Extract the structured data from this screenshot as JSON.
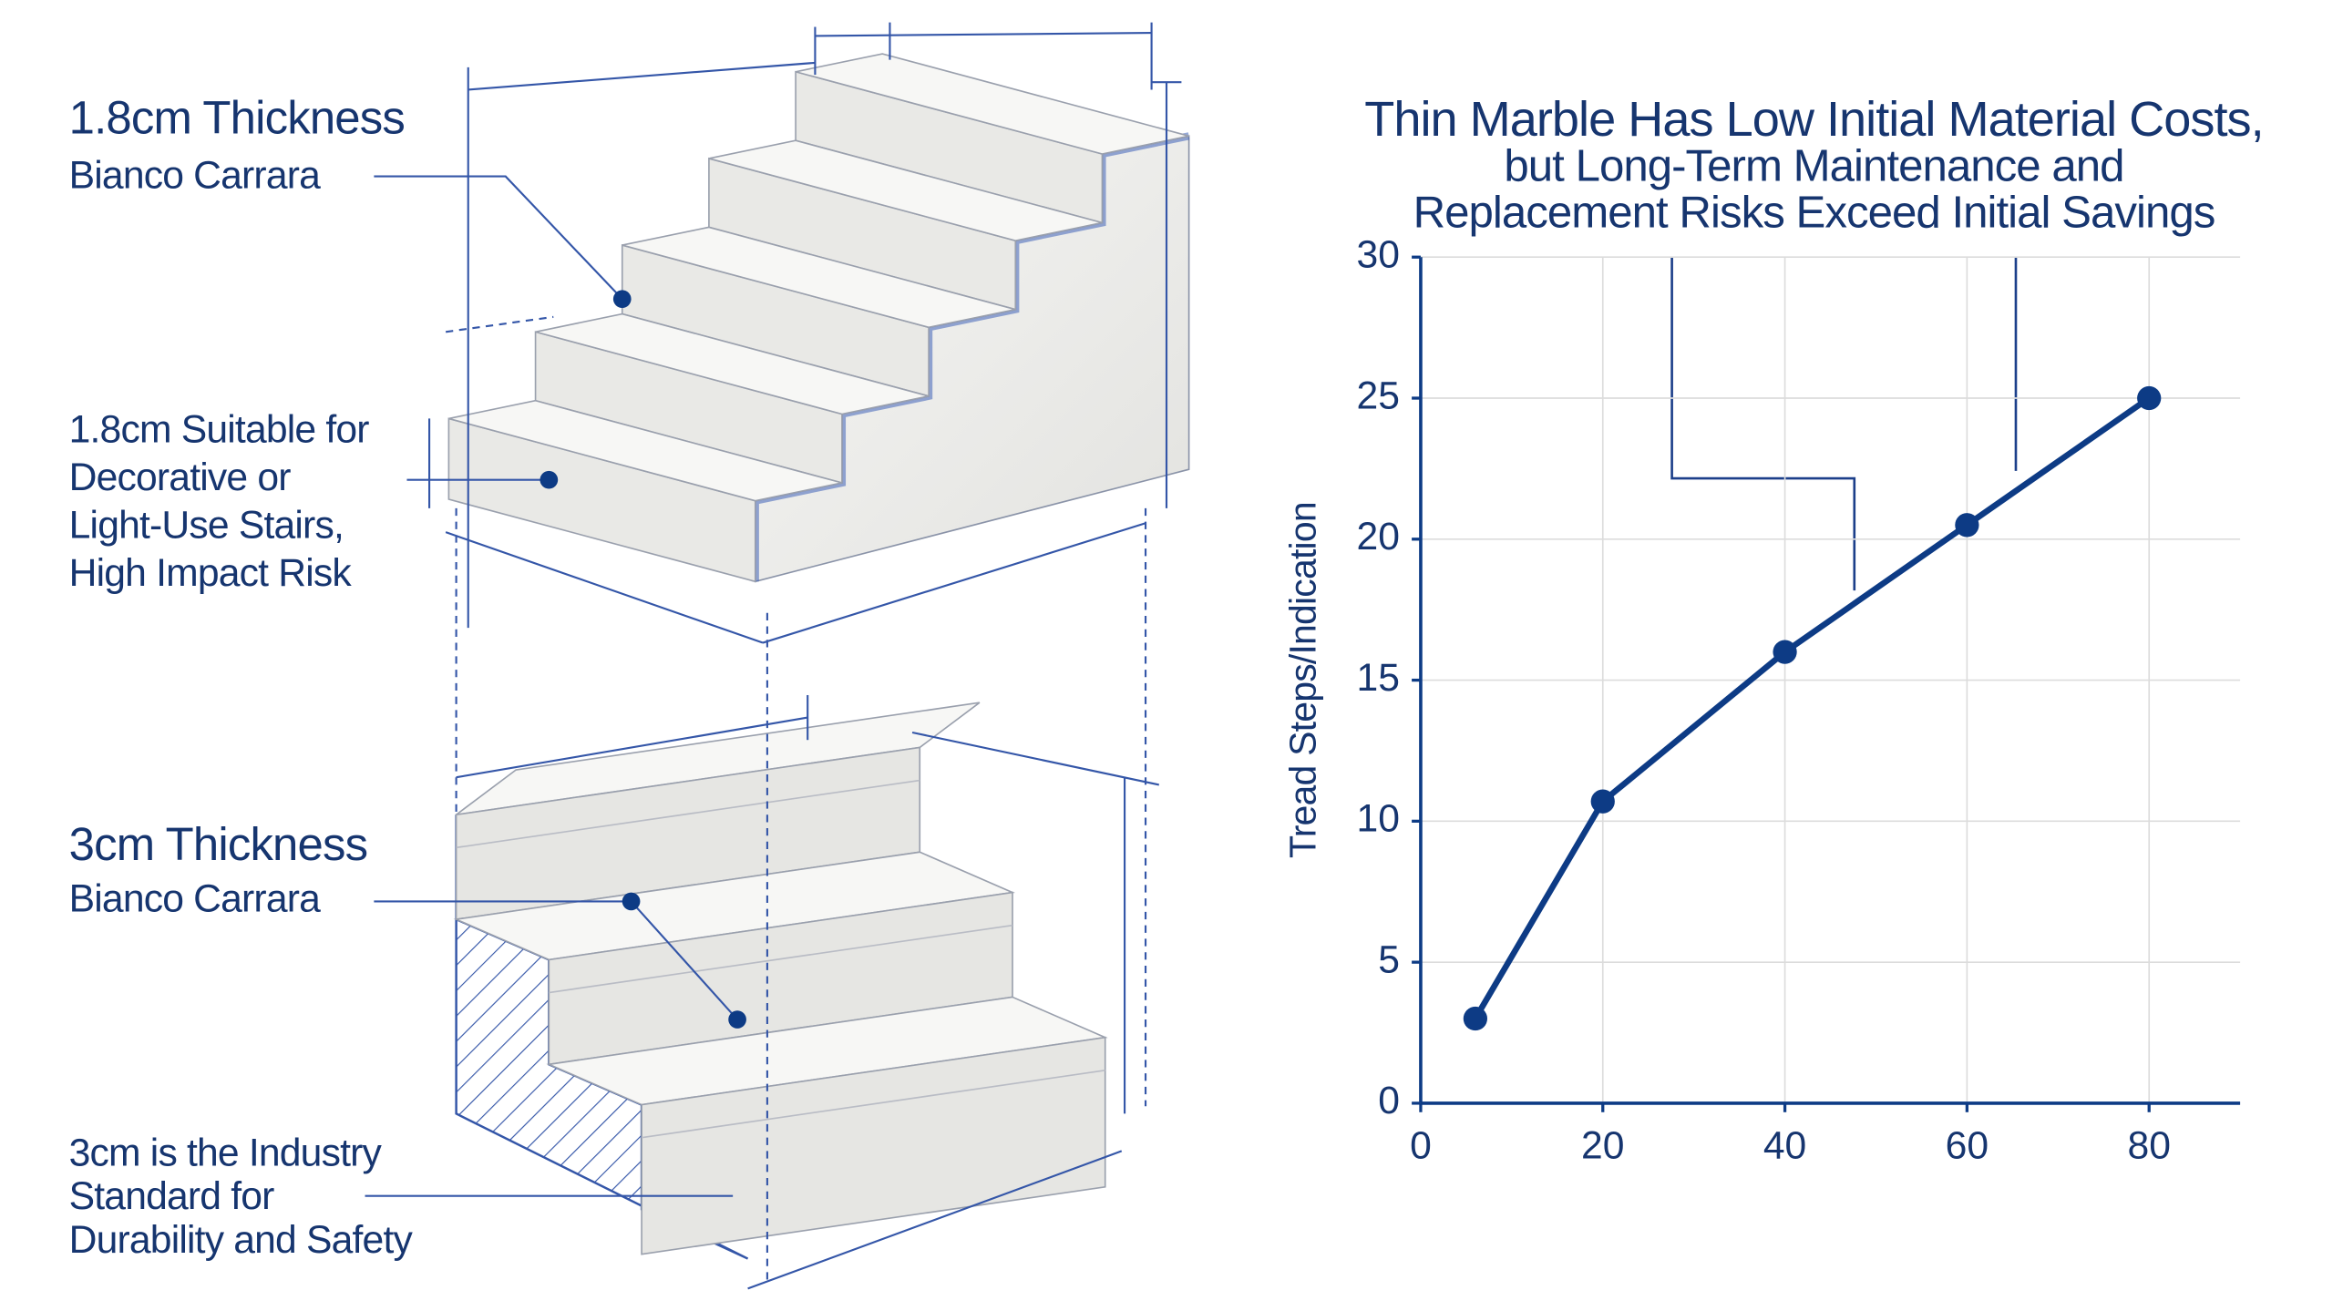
{
  "diagram": {
    "thin": {
      "title": "1.8cm Thickness",
      "subtitle": "Bianco Carrara",
      "note": [
        "1.8cm Suitable for",
        "Decorative or",
        "Light-Use Stairs,",
        "High Impact Risk"
      ]
    },
    "thick": {
      "title": "3cm Thickness",
      "subtitle": "Bianco Carrara",
      "note": [
        "3cm is the Industry",
        "Standard for",
        "Durability and Safety"
      ]
    }
  },
  "chart_data": {
    "type": "line",
    "title": [
      "Thin Marble Has Low Initial Material Costs,",
      "but Long-Term Maintenance and",
      "Replacement Risks Exceed Initial Savings"
    ],
    "y_label": "Tread Steps/Indication",
    "x": [
      6,
      20,
      40,
      60,
      80
    ],
    "values": [
      3,
      10.7,
      16,
      20.5,
      25
    ],
    "color": "#0d3b85",
    "xlim": [
      0,
      90
    ],
    "ylim": [
      0,
      30
    ],
    "xticks": [
      0,
      20,
      40,
      60,
      80
    ],
    "yticks": [
      0,
      5,
      10,
      15,
      20,
      25,
      30
    ],
    "grid": true
  }
}
